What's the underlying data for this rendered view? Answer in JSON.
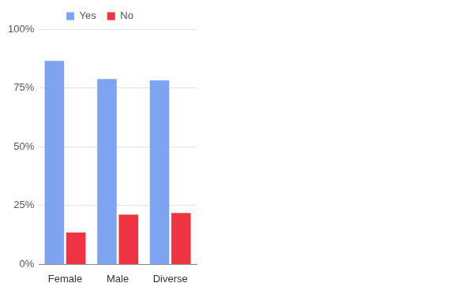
{
  "chart_data": {
    "type": "bar",
    "categories": [
      "Female",
      "Male",
      "Diverse"
    ],
    "series": [
      {
        "name": "Yes",
        "color": "#7ea3f1",
        "values": [
          86.5,
          78.8,
          78.2
        ]
      },
      {
        "name": "No",
        "color": "#ee3342",
        "values": [
          13.5,
          21.2,
          21.8
        ]
      }
    ],
    "ylim": [
      0,
      100
    ],
    "yticks": [
      {
        "value": 0,
        "label": "0%"
      },
      {
        "value": 25,
        "label": "25%"
      },
      {
        "value": 50,
        "label": "50%"
      },
      {
        "value": 75,
        "label": "75%"
      },
      {
        "value": 100,
        "label": "100%"
      }
    ],
    "grid": true,
    "legend": "top"
  }
}
